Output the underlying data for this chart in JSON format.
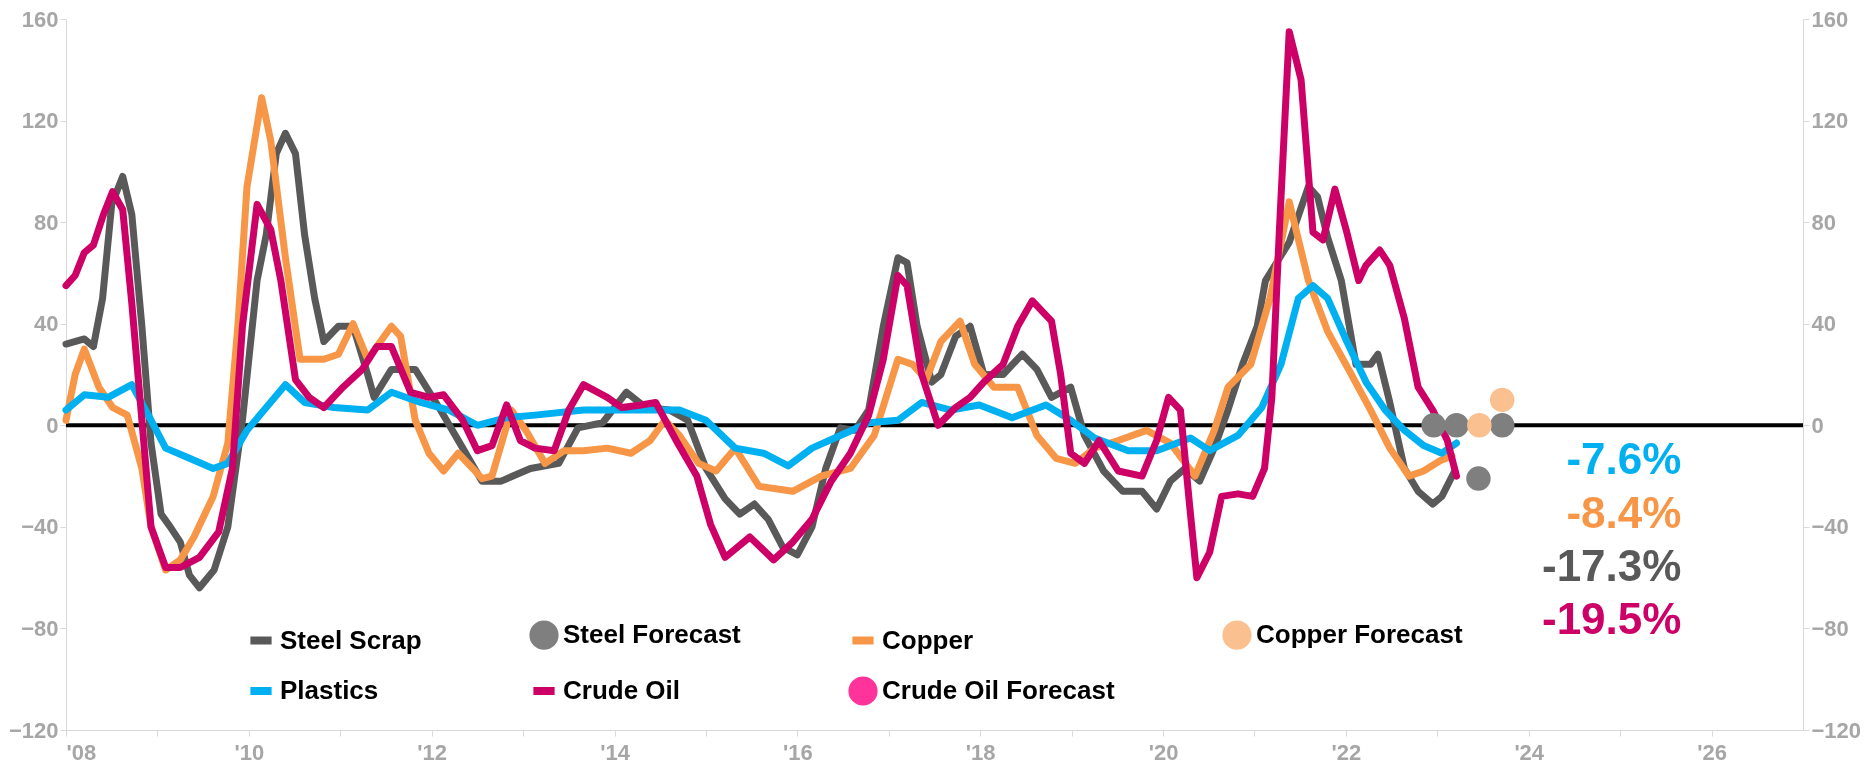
{
  "chart_data": {
    "type": "line",
    "xlim": [
      2008,
      2027
    ],
    "ylim": [
      -120,
      160
    ],
    "y2lim": [
      -120,
      160
    ],
    "xticks": [
      {
        "value": 2008,
        "label": "'08"
      },
      {
        "value": 2009,
        "label": null
      },
      {
        "value": 2010,
        "label": "'10"
      },
      {
        "value": 2011,
        "label": null
      },
      {
        "value": 2012,
        "label": "'12"
      },
      {
        "value": 2013,
        "label": null
      },
      {
        "value": 2014,
        "label": "'14"
      },
      {
        "value": 2015,
        "label": null
      },
      {
        "value": 2016,
        "label": "'16"
      },
      {
        "value": 2017,
        "label": null
      },
      {
        "value": 2018,
        "label": "'18"
      },
      {
        "value": 2019,
        "label": null
      },
      {
        "value": 2020,
        "label": "'20"
      },
      {
        "value": 2021,
        "label": null
      },
      {
        "value": 2022,
        "label": "'22"
      },
      {
        "value": 2023,
        "label": null
      },
      {
        "value": 2024,
        "label": "'24"
      },
      {
        "value": 2025,
        "label": null
      },
      {
        "value": 2026,
        "label": "'26"
      }
    ],
    "yticks": [
      -120,
      -80,
      -40,
      0,
      40,
      80,
      120,
      160
    ],
    "y2ticks": [
      -120,
      -80,
      -40,
      0,
      40,
      80,
      120,
      160
    ],
    "grid": false,
    "legend": "bottom",
    "line_style": "solid",
    "ref_lines": [
      {
        "axis": "y",
        "value": 0,
        "color": "#000000"
      }
    ],
    "annotations": [
      "-7.6%",
      "-8.4%",
      "-17.3%",
      "-19.5%"
    ],
    "series": [
      {
        "name": "Steel Scrap",
        "color": "#595959",
        "x": [
          2008.0,
          2008.2,
          2008.3,
          2008.4,
          2008.5,
          2008.62,
          2008.72,
          2008.83,
          2008.93,
          2009.04,
          2009.14,
          2009.25,
          2009.35,
          2009.46,
          2009.62,
          2009.77,
          2009.93,
          2010.09,
          2010.19,
          2010.3,
          2010.4,
          2010.51,
          2010.61,
          2010.72,
          2010.82,
          2010.98,
          2011.14,
          2011.3,
          2011.37,
          2011.56,
          2011.82,
          2012.08,
          2012.34,
          2012.55,
          2012.76,
          2013.08,
          2013.39,
          2013.6,
          2013.87,
          2014.13,
          2014.34,
          2014.6,
          2014.8,
          2015.0,
          2015.21,
          2015.37,
          2015.53,
          2015.68,
          2015.84,
          2016.0,
          2016.16,
          2016.31,
          2016.47,
          2016.63,
          2016.78,
          2016.94,
          2017.1,
          2017.2,
          2017.31,
          2017.47,
          2017.57,
          2017.73,
          2017.89,
          2018.04,
          2018.25,
          2018.46,
          2018.62,
          2018.78,
          2018.99,
          2019.14,
          2019.35,
          2019.56,
          2019.77,
          2019.93,
          2020.08,
          2020.24,
          2020.4,
          2020.56,
          2020.71,
          2020.87,
          2021.03,
          2021.12,
          2021.38,
          2021.59,
          2021.69,
          2021.8,
          2021.95,
          2022.11,
          2022.27,
          2022.35,
          2022.48,
          2022.64,
          2022.79,
          2022.95,
          2023.05,
          2023.19
        ],
        "values": [
          32,
          34,
          31,
          50,
          87,
          98,
          83,
          39,
          -7,
          -35,
          -40,
          -46,
          -59,
          -64,
          -57,
          -40,
          2,
          57,
          75,
          107,
          115,
          107,
          75,
          50,
          33,
          39,
          39,
          20,
          11,
          22,
          22,
          7,
          -9,
          -22,
          -22,
          -17,
          -15,
          -1,
          1,
          13,
          7,
          6,
          2,
          -17,
          -29,
          -35,
          -31,
          -37,
          -48,
          -51,
          -40,
          -17,
          -1,
          -2,
          6,
          39,
          66,
          64,
          39,
          17,
          20,
          35,
          39,
          20,
          20,
          28,
          22,
          11,
          15,
          -4,
          -18,
          -26,
          -26,
          -33,
          -22,
          -17,
          -22,
          -9,
          6,
          24,
          39,
          57,
          72,
          94,
          90,
          74,
          57,
          24,
          24,
          28,
          9,
          -17,
          -26,
          -31,
          -28,
          -18
        ]
      },
      {
        "name": "Steel Forecast",
        "type": "scatter",
        "color": "#7f7f7f",
        "x": [
          2022.96,
          2023.21,
          2023.45,
          2023.71
        ],
        "values": [
          0,
          0,
          -21,
          0
        ]
      },
      {
        "name": "Copper",
        "color": "#f79646",
        "x": [
          2008.0,
          2008.1,
          2008.2,
          2008.36,
          2008.51,
          2008.67,
          2008.83,
          2008.93,
          2009.09,
          2009.25,
          2009.4,
          2009.61,
          2009.77,
          2009.88,
          2009.98,
          2010.14,
          2010.24,
          2010.4,
          2010.56,
          2010.82,
          2010.98,
          2011.14,
          2011.3,
          2011.56,
          2011.66,
          2011.82,
          2011.97,
          2012.13,
          2012.29,
          2012.45,
          2012.55,
          2012.66,
          2012.87,
          2013.03,
          2013.24,
          2013.45,
          2013.66,
          2013.92,
          2014.18,
          2014.39,
          2014.55,
          2014.71,
          2014.92,
          2015.11,
          2015.32,
          2015.58,
          2015.95,
          2016.26,
          2016.58,
          2016.84,
          2017.1,
          2017.26,
          2017.41,
          2017.57,
          2017.78,
          2017.94,
          2018.15,
          2018.41,
          2018.62,
          2018.83,
          2019.04,
          2019.25,
          2019.51,
          2019.82,
          2020.08,
          2020.35,
          2020.56,
          2020.71,
          2020.96,
          2021.17,
          2021.38,
          2021.59,
          2021.8,
          2022.06,
          2022.27,
          2022.48,
          2022.69,
          2022.85,
          2023.03,
          2023.16
        ],
        "values": [
          2,
          20,
          30,
          15,
          7,
          4,
          -17,
          -40,
          -57,
          -53,
          -44,
          -28,
          -7,
          39,
          94,
          129,
          112,
          66,
          26,
          26,
          28,
          40,
          26,
          39,
          35,
          2,
          -11,
          -18,
          -11,
          -17,
          -21,
          -20,
          6,
          -2,
          -15,
          -10,
          -10,
          -9,
          -11,
          -6,
          2,
          -4,
          -15,
          -18,
          -9,
          -24,
          -26,
          -20,
          -17,
          -4,
          26,
          24,
          18,
          33,
          41,
          24,
          15,
          15,
          -4,
          -13,
          -15,
          -9,
          -6,
          -2,
          -7,
          -20,
          -2,
          15,
          24,
          50,
          88,
          57,
          37,
          20,
          6,
          -9,
          -20,
          -18,
          -14,
          -12
        ]
      },
      {
        "name": "Copper Forecast",
        "type": "scatter",
        "color": "#fac090",
        "x": [
          2023.46,
          2023.71
        ],
        "values": [
          0,
          10
        ]
      },
      {
        "name": "Plastics",
        "color": "#00b0f0",
        "x": [
          2008.0,
          2008.2,
          2008.46,
          2008.72,
          2008.93,
          2009.09,
          2009.35,
          2009.61,
          2009.77,
          2009.98,
          2010.19,
          2010.4,
          2010.61,
          2010.93,
          2011.3,
          2011.56,
          2011.88,
          2012.19,
          2012.5,
          2012.82,
          2013.13,
          2013.66,
          2014.18,
          2014.71,
          2015.0,
          2015.32,
          2015.63,
          2015.9,
          2016.16,
          2016.47,
          2016.78,
          2017.1,
          2017.36,
          2017.68,
          2017.99,
          2018.35,
          2018.72,
          2018.99,
          2019.25,
          2019.62,
          2019.93,
          2020.3,
          2020.51,
          2020.82,
          2021.08,
          2021.29,
          2021.48,
          2021.64,
          2021.8,
          2022.01,
          2022.22,
          2022.43,
          2022.64,
          2022.85,
          2023.05,
          2023.21
        ],
        "values": [
          6,
          12,
          11,
          16,
          2,
          -9,
          -13,
          -17,
          -15,
          -2,
          7,
          16,
          9,
          7,
          6,
          13,
          9,
          6,
          0,
          3,
          4,
          6,
          6,
          6,
          2,
          -9,
          -11,
          -16,
          -9,
          -4,
          1,
          2,
          9,
          6,
          8,
          3,
          8,
          2,
          -5,
          -10,
          -10,
          -5,
          -10,
          -4,
          7,
          24,
          50,
          55,
          50,
          33,
          17,
          6,
          -2,
          -8,
          -11,
          -7
        ]
      },
      {
        "name": "Crude Oil",
        "color": "#cc0066",
        "x": [
          2008.0,
          2008.1,
          2008.2,
          2008.3,
          2008.41,
          2008.51,
          2008.62,
          2008.72,
          2008.83,
          2008.93,
          2009.09,
          2009.25,
          2009.46,
          2009.67,
          2009.82,
          2009.93,
          2010.09,
          2010.24,
          2010.35,
          2010.51,
          2010.66,
          2010.82,
          2011.03,
          2011.24,
          2011.4,
          2011.56,
          2011.77,
          2011.97,
          2012.13,
          2012.34,
          2012.5,
          2012.66,
          2012.82,
          2012.97,
          2013.13,
          2013.34,
          2013.5,
          2013.66,
          2013.92,
          2014.08,
          2014.29,
          2014.45,
          2014.69,
          2014.9,
          2015.05,
          2015.21,
          2015.48,
          2015.74,
          2015.95,
          2016.16,
          2016.37,
          2016.58,
          2016.78,
          2016.94,
          2017.1,
          2017.2,
          2017.36,
          2017.54,
          2017.73,
          2017.89,
          2018.04,
          2018.25,
          2018.41,
          2018.57,
          2018.78,
          2018.88,
          2018.99,
          2019.14,
          2019.3,
          2019.51,
          2019.77,
          2019.93,
          2020.06,
          2020.19,
          2020.3,
          2020.37,
          2020.51,
          2020.64,
          2020.82,
          2020.98,
          2021.11,
          2021.19,
          2021.27,
          2021.38,
          2021.51,
          2021.64,
          2021.75,
          2021.88,
          2022.01,
          2022.14,
          2022.22,
          2022.37,
          2022.48,
          2022.64,
          2022.79,
          2022.95,
          2023.11,
          2023.21
        ],
        "values": [
          55,
          59,
          68,
          71,
          83,
          92,
          85,
          48,
          2,
          -40,
          -56,
          -56,
          -52,
          -42,
          -17,
          39,
          87,
          77,
          57,
          18,
          11,
          7,
          15,
          22,
          31,
          31,
          13,
          11,
          12,
          2,
          -10,
          -8,
          8,
          -6,
          -9,
          -10,
          6,
          16,
          11,
          7,
          8,
          9,
          -7,
          -20,
          -39,
          -52,
          -44,
          -53,
          -46,
          -37,
          -22,
          -11,
          4,
          26,
          59,
          55,
          20,
          0,
          7,
          11,
          17,
          24,
          39,
          49,
          41,
          20,
          -11,
          -15,
          -6,
          -18,
          -20,
          -6,
          11,
          6,
          -35,
          -60,
          -50,
          -28,
          -27,
          -28,
          -17,
          11,
          75,
          155,
          136,
          76,
          73,
          93,
          76,
          57,
          63,
          69,
          63,
          42,
          15,
          6,
          -6,
          -20
        ]
      },
      {
        "name": "Crude Oil Forecast",
        "type": "scatter",
        "color": "#ff3399"
      }
    ]
  }
}
